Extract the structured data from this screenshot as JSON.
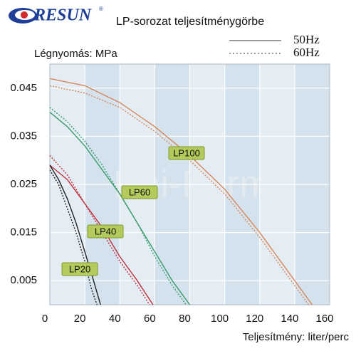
{
  "chart_data": {
    "type": "line",
    "brand": "RESUN",
    "brand_mark": "®",
    "title": "LP-sorozat teljesítménygörbe",
    "y_label": "Légnyomás: MPa",
    "x_label": "Teljesítmény: liter/perc",
    "watermark": "Koi-Farm",
    "xlim": [
      0,
      160
    ],
    "xticks": [
      0,
      20,
      40,
      60,
      80,
      100,
      120,
      140,
      160
    ],
    "ylim": [
      0,
      0.05
    ],
    "yticks": [
      0.005,
      0.015,
      0.025,
      0.035,
      0.045
    ],
    "grid": true,
    "legend": [
      {
        "name": "50Hz",
        "dashed": false
      },
      {
        "name": "60Hz",
        "dashed": true
      }
    ],
    "models": [
      {
        "label": "LP100",
        "color": "#d9865a",
        "curves": [
          {
            "x": [
              0,
              20,
              40,
              60,
              80,
              100,
              120,
              140,
              150
            ],
            "values": [
              0.047,
              0.0455,
              0.042,
              0.037,
              0.031,
              0.024,
              0.015,
              0.005,
              0
            ]
          },
          {
            "x": [
              0,
              20,
              40,
              60,
              80,
              100,
              120,
              140,
              148
            ],
            "values": [
              0.0455,
              0.044,
              0.041,
              0.036,
              0.03,
              0.023,
              0.014,
              0.004,
              0
            ]
          }
        ]
      },
      {
        "label": "LP60",
        "color": "#3a9a6a",
        "curves": [
          {
            "x": [
              0,
              10,
              20,
              30,
              40,
              50,
              60,
              70,
              80
            ],
            "values": [
              0.04,
              0.037,
              0.033,
              0.028,
              0.023,
              0.017,
              0.011,
              0.005,
              0
            ]
          },
          {
            "x": [
              0,
              10,
              20,
              30,
              40,
              50,
              60,
              70,
              78
            ],
            "values": [
              0.041,
              0.038,
              0.034,
              0.029,
              0.023,
              0.017,
              0.01,
              0.004,
              0
            ]
          }
        ]
      },
      {
        "label": "LP40",
        "color": "#c0303a",
        "curves": [
          {
            "x": [
              0,
              10,
              20,
              30,
              40,
              50,
              59
            ],
            "values": [
              0.029,
              0.026,
              0.021,
              0.016,
              0.01,
              0.005,
              0
            ]
          },
          {
            "x": [
              0,
              10,
              20,
              30,
              40,
              50,
              57
            ],
            "values": [
              0.031,
              0.027,
              0.021,
              0.015,
              0.009,
              0.004,
              0
            ]
          }
        ]
      },
      {
        "label": "LP20",
        "color": "#222222",
        "curves": [
          {
            "x": [
              0,
              5,
              10,
              15,
              20,
              25,
              29
            ],
            "values": [
              0.029,
              0.026,
              0.022,
              0.017,
              0.011,
              0.005,
              0
            ]
          },
          {
            "x": [
              0,
              5,
              10,
              15,
              20,
              24,
              27
            ],
            "values": [
              0.028,
              0.025,
              0.02,
              0.015,
              0.009,
              0.003,
              0
            ]
          }
        ]
      }
    ]
  }
}
